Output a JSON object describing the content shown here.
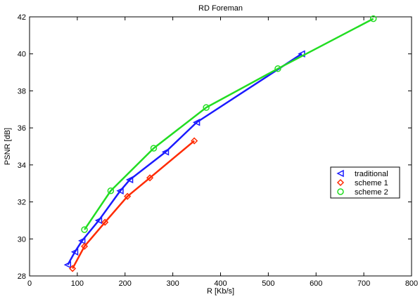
{
  "chart_data": {
    "type": "line",
    "title": "RD Foreman",
    "xlabel": "R [Kb/s]",
    "ylabel": "PSNR [dB]",
    "xlim": [
      0,
      800
    ],
    "ylim": [
      28,
      42
    ],
    "xticks": [
      0,
      100,
      200,
      300,
      400,
      500,
      600,
      700,
      800
    ],
    "yticks": [
      28,
      30,
      32,
      34,
      36,
      38,
      40,
      42
    ],
    "grid": false,
    "legend_position": "right",
    "series": [
      {
        "name": "traditional",
        "color": "#1a1aff",
        "marker": "triangle-left",
        "x": [
          80,
          95,
          110,
          145,
          190,
          210,
          285,
          350,
          570
        ],
        "y": [
          28.6,
          29.3,
          29.9,
          31.0,
          32.6,
          33.2,
          34.7,
          36.3,
          40.0
        ]
      },
      {
        "name": "scheme 1",
        "color": "#ff2a00",
        "marker": "diamond",
        "x": [
          90,
          115,
          158,
          205,
          252,
          345
        ],
        "y": [
          28.4,
          29.6,
          30.9,
          32.3,
          33.3,
          35.3
        ]
      },
      {
        "name": "scheme 2",
        "color": "#22dd22",
        "marker": "circle",
        "x": [
          115,
          170,
          260,
          370,
          520,
          720
        ],
        "y": [
          30.5,
          32.6,
          34.9,
          37.1,
          39.2,
          41.9
        ]
      }
    ]
  }
}
